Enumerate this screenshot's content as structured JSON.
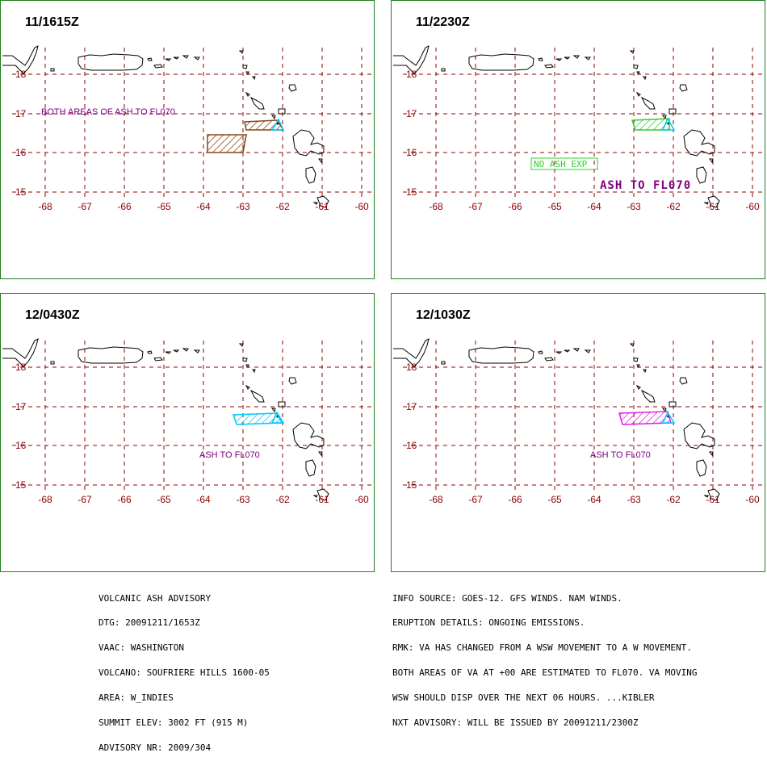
{
  "colors": {
    "grid": "#8b0000",
    "border": "#1f7f1f",
    "label_purple": "#800080",
    "ash_brown": "#8b4513",
    "ash_cyan": "#00c8ff",
    "ash_green": "#33cc33",
    "ash_magenta": "#e020e0"
  },
  "map": {
    "lon_ticks": [
      "-68",
      "-67",
      "-66",
      "-65",
      "-64",
      "-63",
      "-62",
      "-61",
      "-60"
    ],
    "lat_ticks": [
      "18",
      "17",
      "16",
      "15"
    ]
  },
  "panels": [
    {
      "time": "11/1615Z",
      "labels": [
        "BOTH AREAS OF ASH TO FL070"
      ]
    },
    {
      "time": "11/2230Z",
      "labels": [
        "NO ASH EXP",
        "ASH TO FL070"
      ]
    },
    {
      "time": "12/0430Z",
      "labels": [
        "ASH TO FL070"
      ]
    },
    {
      "time": "12/1030Z",
      "labels": [
        "ASH TO FL070"
      ]
    }
  ],
  "footer": {
    "left": [
      "VOLCANIC ASH ADVISORY",
      "DTG: 20091211/1653Z",
      "VAAC: WASHINGTON",
      "VOLCANO: SOUFRIERE HILLS 1600-05",
      "AREA: W_INDIES",
      "SUMMIT ELEV: 3002 FT (915 M)",
      "ADVISORY NR: 2009/304"
    ],
    "right": [
      "INFO SOURCE: GOES-12. GFS WINDS. NAM WINDS.",
      "ERUPTION DETAILS: ONGOING EMISSIONS.",
      "RMK: VA HAS CHANGED FROM A WSW MOVEMENT TO A W MOVEMENT.",
      "BOTH AREAS OF VA AT +00 ARE ESTIMATED TO FL070. VA MOVING",
      "WSW SHOULD DISP OVER THE NEXT 06 HOURS. ...KIBLER",
      "NXT ADVISORY: WILL BE ISSUED BY 20091211/2300Z"
    ]
  }
}
